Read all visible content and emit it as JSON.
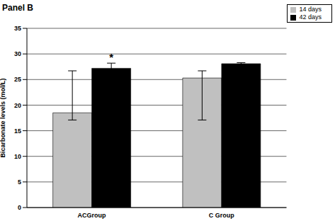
{
  "chart_data": {
    "type": "bar",
    "title": "Panel B",
    "y_label": "Bicarbonate levels (mol/L)",
    "categories": [
      "ACGroup",
      "C Group"
    ],
    "series": [
      {
        "name": "14 days",
        "color": "#c0c0c0",
        "values": [
          18.5,
          25.3
        ],
        "error_minus": [
          1.4,
          8.2
        ],
        "error_plus": [
          8.2,
          1.4
        ]
      },
      {
        "name": "42 days",
        "color": "#000000",
        "values": [
          27.2,
          28.1
        ],
        "error_minus": [
          0.9,
          0.1
        ],
        "error_plus": [
          1.0,
          0.2
        ]
      }
    ],
    "ylim": [
      0,
      35
    ],
    "yticks": [
      0,
      5,
      10,
      15,
      20,
      25,
      30,
      35
    ],
    "grid": true,
    "legend": "top-right",
    "annotations": [
      {
        "text": "*",
        "category": "ACGroup",
        "series": "42 days"
      }
    ]
  }
}
